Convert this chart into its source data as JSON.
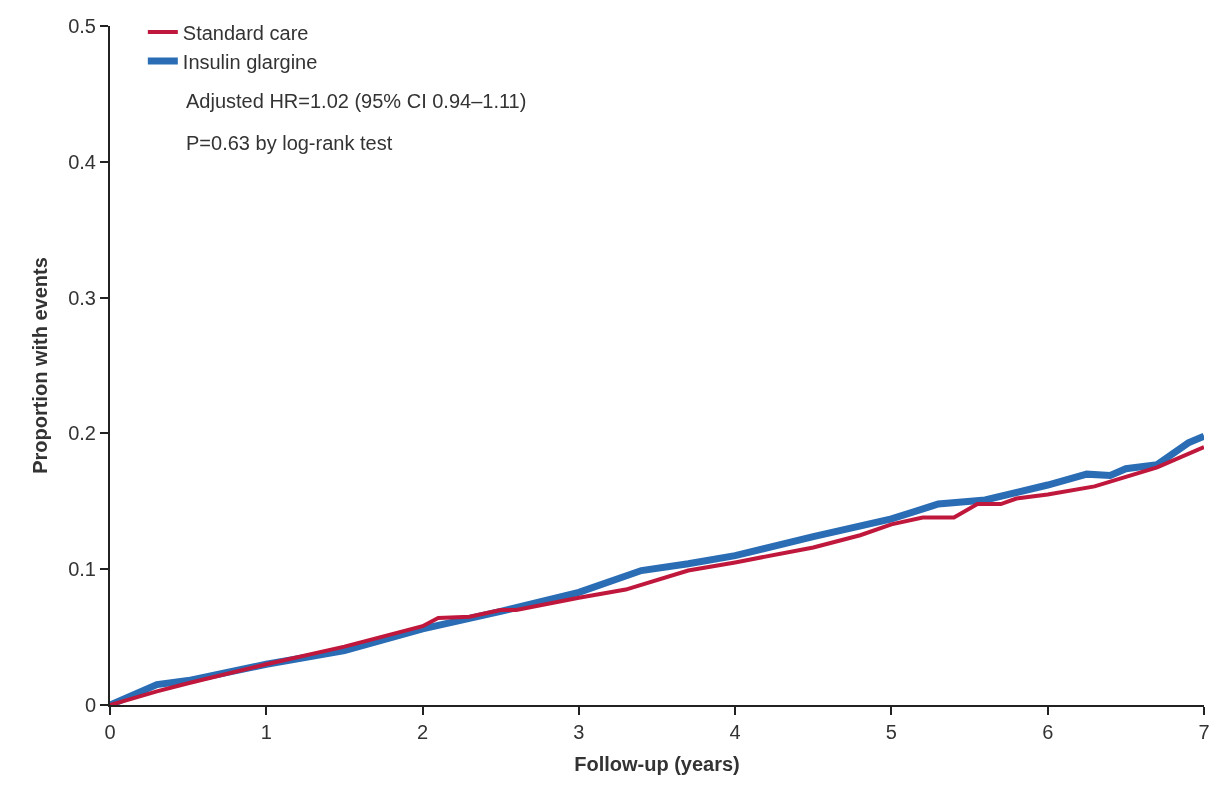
{
  "chart_data": {
    "type": "line",
    "xlabel": "Follow-up (years)",
    "ylabel": "Proportion with events",
    "xlim": [
      0,
      7
    ],
    "xticks": [
      0,
      1,
      2,
      3,
      4,
      5,
      6,
      7
    ],
    "ylim": [
      0,
      0.5
    ],
    "yticks": [
      0,
      0.1,
      0.2,
      0.3,
      0.4,
      0.5
    ],
    "legend": "top left",
    "line_style": "solid",
    "marker": "none",
    "annotations": [
      "Adjusted HR=1.02 (95% CI 0.94–1.11)",
      "P=0.63 by log-rank test"
    ],
    "series": [
      {
        "name": "Insulin glargine",
        "color": "#2a6db5",
        "x": [
          0,
          0.3,
          0.5,
          1,
          1.5,
          2,
          2.5,
          3,
          3.4,
          3.7,
          4,
          4.5,
          5,
          5.3,
          5.6,
          6,
          6.25,
          6.4,
          6.5,
          6.7,
          6.9,
          7
        ],
        "values": [
          0,
          0.015,
          0.018,
          0.03,
          0.04,
          0.056,
          0.069,
          0.083,
          0.099,
          0.104,
          0.11,
          0.124,
          0.137,
          0.148,
          0.151,
          0.162,
          0.17,
          0.169,
          0.174,
          0.177,
          0.193,
          0.198
        ]
      },
      {
        "name": "Standard care",
        "color": "#c0183c",
        "x": [
          0,
          0.3,
          0.5,
          1,
          1.5,
          2,
          2.1,
          2.3,
          2.5,
          2.6,
          3,
          3.3,
          3.7,
          4,
          4.5,
          4.8,
          5,
          5.2,
          5.4,
          5.55,
          5.7,
          5.8,
          6,
          6.3,
          6.5,
          6.7,
          7
        ],
        "values": [
          0,
          0.01,
          0.016,
          0.03,
          0.043,
          0.058,
          0.064,
          0.065,
          0.07,
          0.07,
          0.079,
          0.085,
          0.099,
          0.105,
          0.116,
          0.125,
          0.133,
          0.138,
          0.138,
          0.148,
          0.148,
          0.152,
          0.155,
          0.161,
          0.168,
          0.175,
          0.19
        ]
      }
    ]
  }
}
